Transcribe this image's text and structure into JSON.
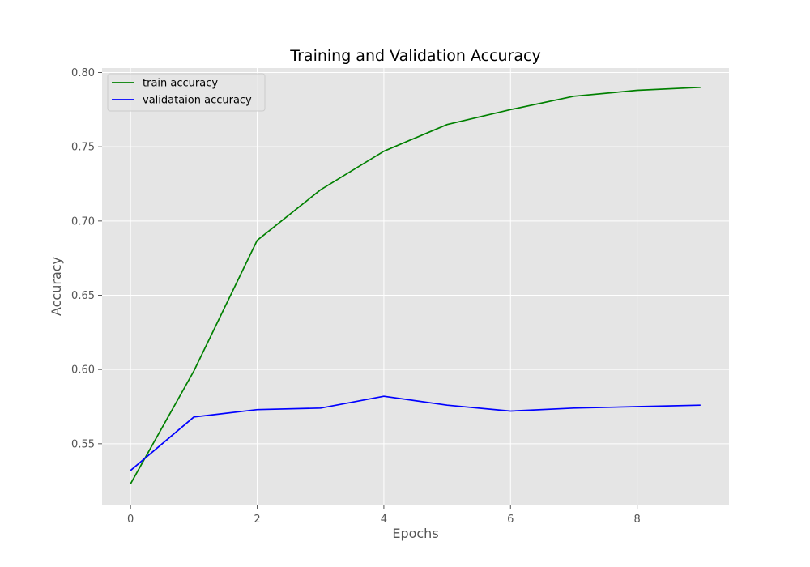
{
  "chart_data": {
    "type": "line",
    "title": "Training and Validation Accuracy",
    "xlabel": "Epochs",
    "ylabel": "Accuracy",
    "x": [
      0,
      1,
      2,
      3,
      4,
      5,
      6,
      7,
      8,
      9
    ],
    "xlim": [
      -0.45,
      9.45
    ],
    "ylim": [
      0.509,
      0.803
    ],
    "xticks": [
      0,
      2,
      4,
      6,
      8
    ],
    "xtick_labels": [
      "0",
      "2",
      "4",
      "6",
      "8"
    ],
    "yticks": [
      0.55,
      0.6,
      0.65,
      0.7,
      0.75,
      0.8
    ],
    "ytick_labels": [
      "0.55",
      "0.60",
      "0.65",
      "0.70",
      "0.75",
      "0.80"
    ],
    "grid": true,
    "legend_position": "top-left",
    "background_color": "#e5e5e5",
    "series": [
      {
        "name": "train accuracy",
        "color": "#008000",
        "values": [
          0.523,
          0.599,
          0.687,
          0.721,
          0.747,
          0.765,
          0.775,
          0.784,
          0.788,
          0.79
        ]
      },
      {
        "name": "validataion accuracy",
        "color": "#0000ff",
        "values": [
          0.532,
          0.568,
          0.573,
          0.574,
          0.582,
          0.576,
          0.572,
          0.574,
          0.575,
          0.576
        ]
      }
    ]
  }
}
